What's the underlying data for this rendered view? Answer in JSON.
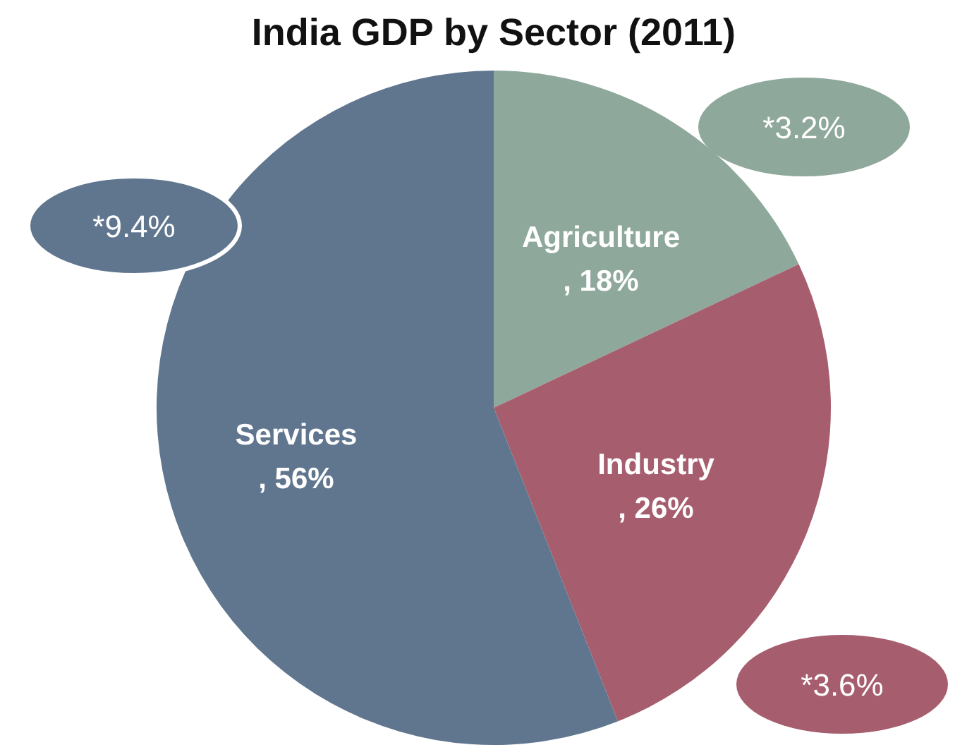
{
  "chart_data": {
    "type": "pie",
    "title": "India GDP by Sector (2011)",
    "categories": [
      "Agriculture",
      "Industry",
      "Services"
    ],
    "values": [
      18,
      26,
      56
    ],
    "value_labels": [
      ", 18%",
      ", 26%",
      ", 56%"
    ],
    "colors": [
      "#8fa89c",
      "#a65e6e",
      "#60768f"
    ],
    "annotations": [
      "*3.2%",
      "*3.6%",
      "*9.4%"
    ]
  }
}
